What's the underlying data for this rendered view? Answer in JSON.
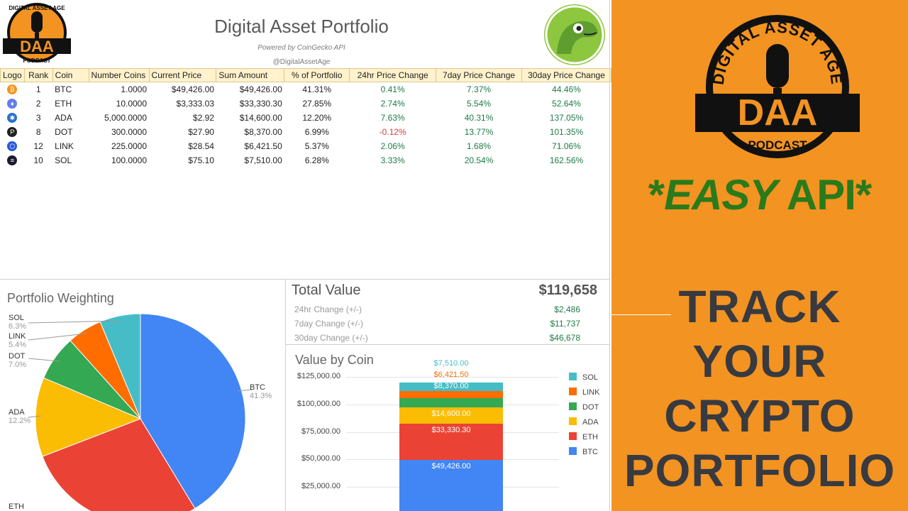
{
  "sheet": {
    "title": "Digital Asset Portfolio",
    "subtitle": "Powered by CoinGecko API",
    "handle": "@DigitalAssetAge",
    "logo_text": {
      "top": "DIGITAL ASSET AGE",
      "mid": "DAA",
      "bottom": "PODCAST"
    },
    "columns": [
      "Logo",
      "Rank",
      "Coin",
      "Number Coins",
      "Current Price",
      "Sum Amount",
      "% of Portfolio",
      "24hr Price Change",
      "7day Price Change",
      "30day Price Change"
    ],
    "rows": [
      {
        "icon": "bitcoin-icon",
        "color": "#f7931a",
        "glyph": "₿",
        "rank": "1",
        "coin": "BTC",
        "coins": "1.0000",
        "price": "$49,426.00",
        "sum": "$49,426.00",
        "pct": "41.31%",
        "c24": "0.41%",
        "c7": "7.37%",
        "c30": "44.46%"
      },
      {
        "icon": "ethereum-icon",
        "color": "#627eea",
        "glyph": "♦",
        "rank": "2",
        "coin": "ETH",
        "coins": "10.0000",
        "price": "$3,333.03",
        "sum": "$33,330.30",
        "pct": "27.85%",
        "c24": "2.74%",
        "c7": "5.54%",
        "c30": "52.64%"
      },
      {
        "icon": "cardano-icon",
        "color": "#2a71d0",
        "glyph": "✱",
        "rank": "3",
        "coin": "ADA",
        "coins": "5,000.0000",
        "price": "$2.92",
        "sum": "$14,600.00",
        "pct": "12.20%",
        "c24": "7.63%",
        "c7": "40.31%",
        "c30": "137.05%"
      },
      {
        "icon": "polkadot-icon",
        "color": "#222222",
        "glyph": "P",
        "rank": "8",
        "coin": "DOT",
        "coins": "300.0000",
        "price": "$27.90",
        "sum": "$8,370.00",
        "pct": "6.99%",
        "c24": "-0.12%",
        "c7": "13.77%",
        "c30": "101.35%"
      },
      {
        "icon": "chainlink-icon",
        "color": "#2a5ada",
        "glyph": "⬡",
        "rank": "12",
        "coin": "LINK",
        "coins": "225.0000",
        "price": "$28.54",
        "sum": "$6,421.50",
        "pct": "5.37%",
        "c24": "2.06%",
        "c7": "1.68%",
        "c30": "71.06%"
      },
      {
        "icon": "solana-icon",
        "color": "#1b1b2f",
        "glyph": "≡",
        "rank": "10",
        "coin": "SOL",
        "coins": "100.0000",
        "price": "$75.10",
        "sum": "$7,510.00",
        "pct": "6.28%",
        "c24": "3.33%",
        "c7": "20.54%",
        "c30": "162.56%"
      }
    ]
  },
  "pie": {
    "title": "Portfolio Weighting",
    "labels": [
      {
        "name": "SOL",
        "pct": "6.3%"
      },
      {
        "name": "LINK",
        "pct": "5.4%"
      },
      {
        "name": "DOT",
        "pct": "7.0%"
      },
      {
        "name": "ADA",
        "pct": "12.2%"
      },
      {
        "name": "BTC",
        "pct": "41.3%"
      },
      {
        "name": "ETH",
        "pct": ""
      }
    ]
  },
  "totals": {
    "title": "Total Value",
    "amount": "$119,658",
    "rows": [
      {
        "label": "24hr Change (+/-)",
        "value": "$2,486"
      },
      {
        "label": "7day Change (+/-)",
        "value": "$11,737"
      },
      {
        "label": "30day Change (+/-)",
        "value": "$46,678"
      }
    ]
  },
  "bar": {
    "title": "Value by Coin",
    "top_labels": [
      "$7,510.00",
      "$6,421.50",
      "$8,370.00"
    ],
    "inner_labels": [
      "$14,600.00",
      "$33,330.30",
      "$49,426.00"
    ],
    "yticks": [
      "$125,000.00",
      "$100,000.00",
      "$75,000.00",
      "$50,000.00",
      "$25,000.00"
    ]
  },
  "chart_data": [
    {
      "type": "pie",
      "title": "Portfolio Weighting",
      "categories": [
        "BTC",
        "ETH",
        "ADA",
        "DOT",
        "LINK",
        "SOL"
      ],
      "values": [
        41.31,
        27.85,
        12.2,
        6.99,
        5.37,
        6.28
      ],
      "colors": [
        "#4285f4",
        "#ea4335",
        "#fbbc04",
        "#34a853",
        "#ff6d01",
        "#46bdc6"
      ]
    },
    {
      "type": "bar",
      "stacked": true,
      "title": "Value by Coin",
      "categories": [
        ""
      ],
      "series": [
        {
          "name": "BTC",
          "values": [
            49426.0
          ],
          "color": "#4285f4"
        },
        {
          "name": "ETH",
          "values": [
            33330.3
          ],
          "color": "#ea4335"
        },
        {
          "name": "ADA",
          "values": [
            14600.0
          ],
          "color": "#fbbc04"
        },
        {
          "name": "DOT",
          "values": [
            8370.0
          ],
          "color": "#34a853"
        },
        {
          "name": "LINK",
          "values": [
            6421.5
          ],
          "color": "#ff6d01"
        },
        {
          "name": "SOL",
          "values": [
            7510.0
          ],
          "color": "#46bdc6"
        }
      ],
      "ylim": [
        0,
        125000
      ],
      "legend": "right"
    }
  ],
  "promo": {
    "easy_prefix": "*",
    "easy_italic": "EASY",
    "easy_suffix": " API*",
    "lines": [
      "TRACK",
      "YOUR",
      "CRYPTO",
      "PORTFOLIO"
    ],
    "logo_text": {
      "top": "DIGITAL ASSET AGE",
      "mid": "DAA",
      "bottom": "PODCAST"
    }
  }
}
